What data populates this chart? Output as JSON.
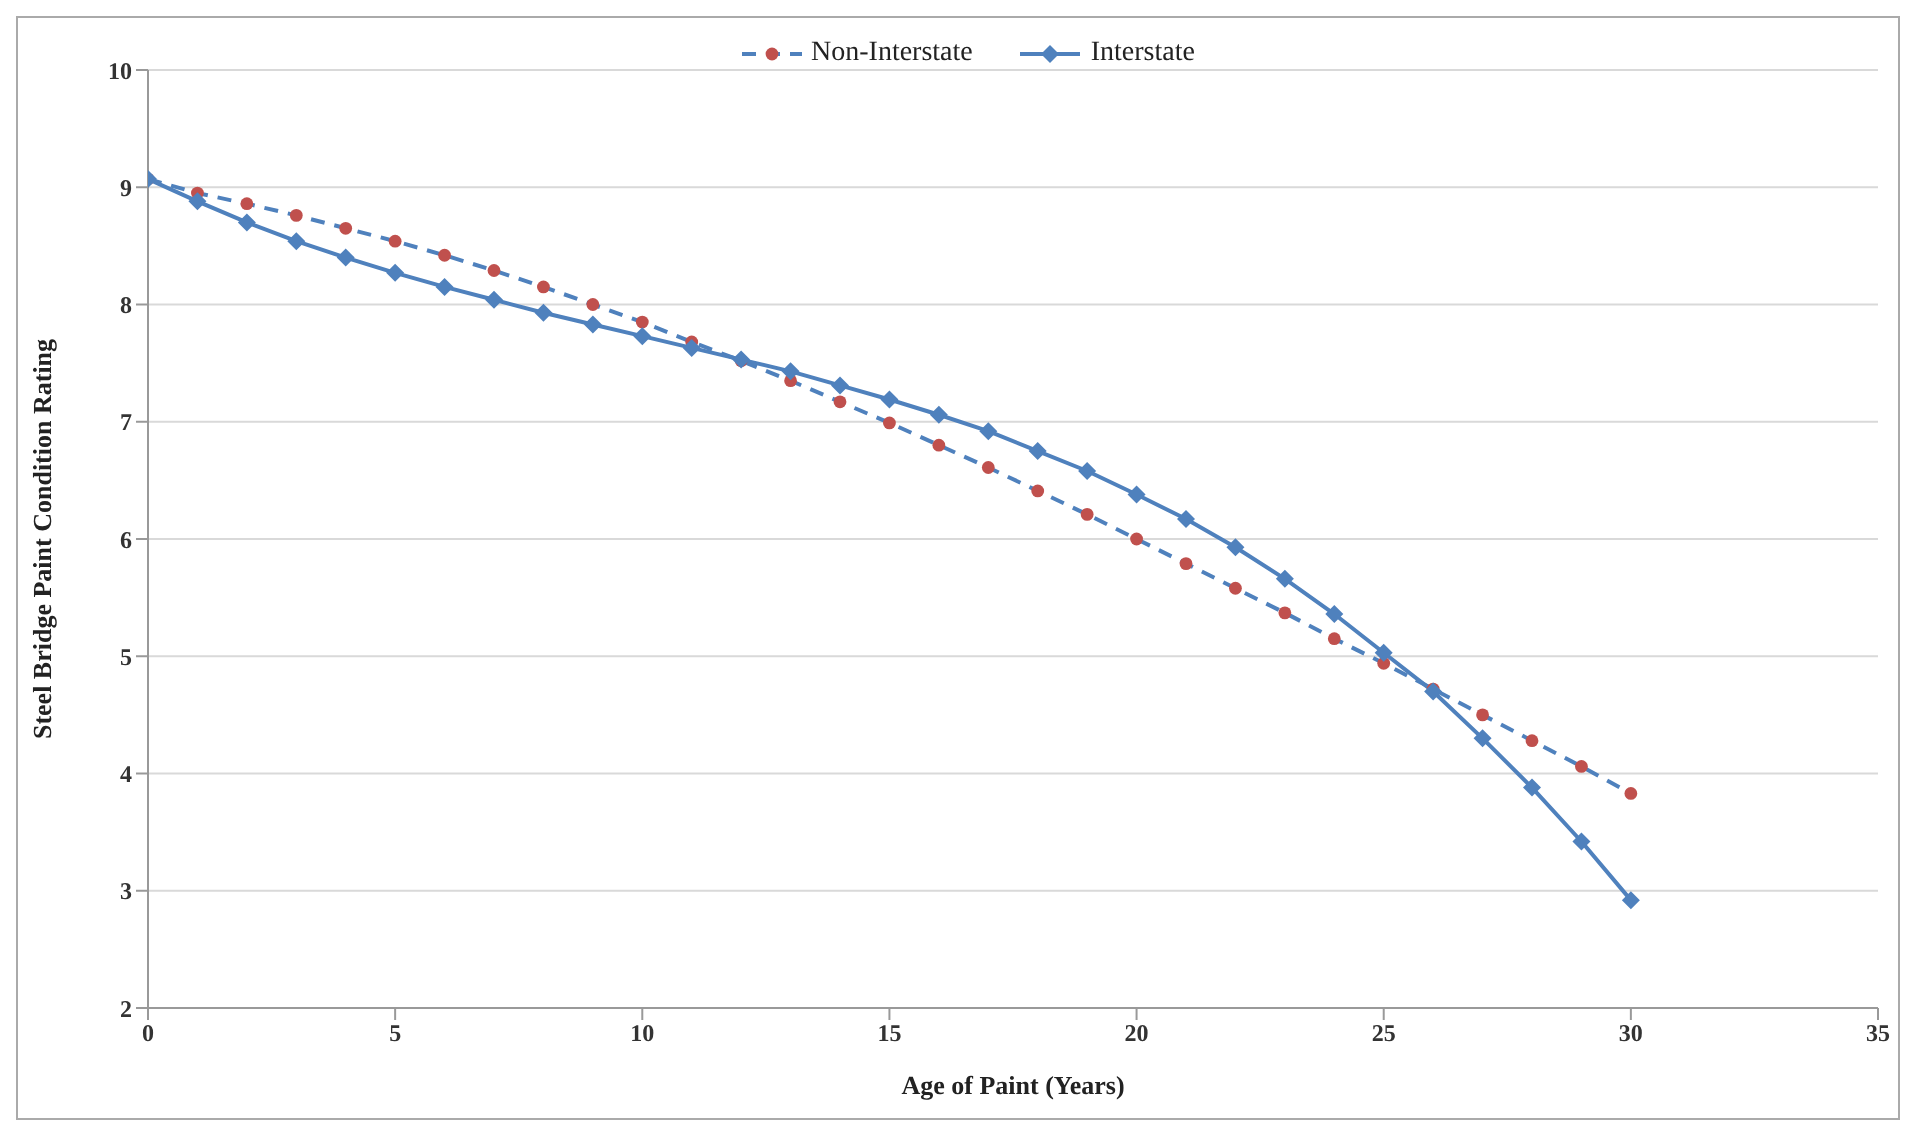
{
  "chart_data": {
    "type": "line",
    "xlabel": "Age of Paint (Years)",
    "ylabel": "Steel Bridge Paint Condition Rating",
    "x": [
      0,
      1,
      2,
      3,
      4,
      5,
      6,
      7,
      8,
      9,
      10,
      11,
      12,
      13,
      14,
      15,
      16,
      17,
      18,
      19,
      20,
      21,
      22,
      23,
      24,
      25,
      26,
      27,
      28,
      29,
      30
    ],
    "series": [
      {
        "name": "Non-Interstate",
        "color": "#4f81bd",
        "colors": [
          "#c0504d",
          "#c0504d",
          "#c0504d",
          "#c0504d",
          "#c0504d",
          "#c0504d",
          "#c0504d",
          "#c0504d",
          "#c0504d",
          "#c0504d",
          "#c0504d",
          "#c0504d",
          "#c0504d",
          "#c0504d",
          "#c0504d",
          "#c0504d",
          "#c0504d",
          "#c0504d",
          "#c0504d",
          "#c0504d",
          "#c0504d",
          "#c0504d",
          "#c0504d",
          "#c0504d",
          "#c0504d",
          "#c0504d",
          "#c0504d",
          "#c0504d",
          "#c0504d",
          "#c0504d",
          "#c0504d"
        ],
        "marker": "circle",
        "line_style": "dashed",
        "values": [
          9.07,
          8.95,
          8.86,
          8.76,
          8.65,
          8.54,
          8.42,
          8.29,
          8.15,
          8.0,
          7.85,
          7.68,
          7.52,
          7.35,
          7.17,
          6.99,
          6.8,
          6.61,
          6.41,
          6.21,
          6.0,
          5.79,
          5.58,
          5.37,
          5.15,
          4.94,
          4.72,
          4.5,
          4.28,
          4.06,
          3.83
        ]
      },
      {
        "name": "Interstate",
        "color": "#4f81bd",
        "marker": "diamond",
        "line_style": "solid",
        "values": [
          9.07,
          8.88,
          8.7,
          8.54,
          8.4,
          8.27,
          8.15,
          8.04,
          7.93,
          7.83,
          7.73,
          7.63,
          7.53,
          7.43,
          7.31,
          7.19,
          7.06,
          6.92,
          6.75,
          6.58,
          6.38,
          6.17,
          5.93,
          5.66,
          5.36,
          5.03,
          4.7,
          4.3,
          3.88,
          3.42,
          2.92
        ]
      }
    ],
    "xlim": [
      0,
      35
    ],
    "xticks": [
      0,
      5,
      10,
      15,
      20,
      25,
      30,
      35
    ],
    "ylim": [
      2,
      10
    ],
    "yticks": [
      2,
      3,
      4,
      5,
      6,
      7,
      8,
      9,
      10
    ],
    "grid": "y",
    "legend": "top"
  }
}
